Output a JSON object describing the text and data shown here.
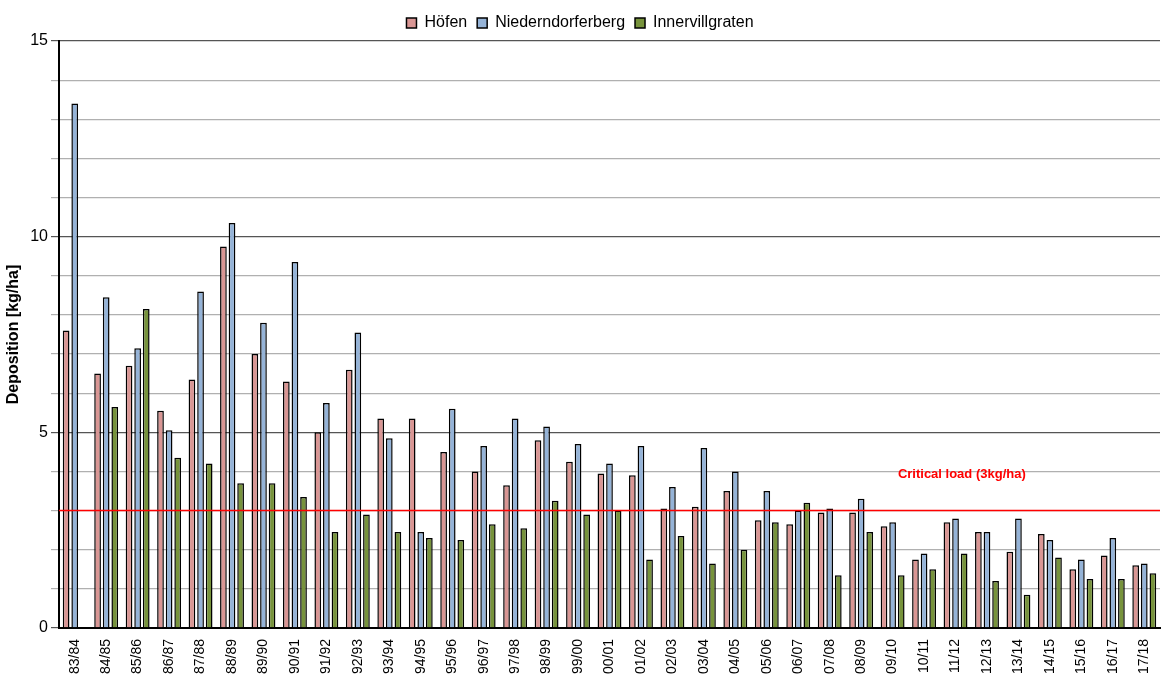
{
  "chart_data": {
    "type": "bar",
    "ylabel": "Deposition [kg/ha]",
    "categories": [
      "83/84",
      "84/85",
      "85/86",
      "86/87",
      "87/88",
      "88/89",
      "89/90",
      "90/91",
      "91/92",
      "92/93",
      "93/94",
      "94/95",
      "95/96",
      "96/97",
      "97/98",
      "98/99",
      "99/00",
      "00/01",
      "01/02",
      "02/03",
      "03/04",
      "04/05",
      "05/06",
      "06/07",
      "07/08",
      "08/09",
      "09/10",
      "10/11",
      "11/12",
      "12/13",
      "13/14",
      "14/15",
      "15/16",
      "16/17",
      "17/18"
    ],
    "series": [
      {
        "name": "Höfen",
        "color": "#d99694",
        "values": [
          7.6,
          6.5,
          6.7,
          5.55,
          6.35,
          9.75,
          7.0,
          6.3,
          5.0,
          6.6,
          5.35,
          5.35,
          4.5,
          4.0,
          3.65,
          4.8,
          4.25,
          3.95,
          3.9,
          3.05,
          3.1,
          3.5,
          2.75,
          2.65,
          2.95,
          2.95,
          2.6,
          1.75,
          2.7,
          2.45,
          1.95,
          2.4,
          1.5,
          1.85,
          1.6
        ]
      },
      {
        "name": "Niederndorferberg",
        "color": "#95b3d7",
        "values": [
          13.4,
          8.45,
          7.15,
          5.05,
          8.6,
          10.35,
          7.8,
          9.35,
          5.75,
          7.55,
          4.85,
          2.45,
          5.6,
          4.65,
          5.35,
          5.15,
          4.7,
          4.2,
          4.65,
          3.6,
          4.6,
          4.0,
          3.5,
          3.0,
          3.05,
          3.3,
          2.7,
          1.9,
          2.8,
          2.45,
          2.8,
          2.25,
          1.75,
          2.3,
          1.65
        ]
      },
      {
        "name": "Innervillgraten",
        "color": "#77933c",
        "values": [
          null,
          5.65,
          8.15,
          4.35,
          4.2,
          3.7,
          3.7,
          3.35,
          2.45,
          2.9,
          2.45,
          2.3,
          2.25,
          2.65,
          2.55,
          3.25,
          2.9,
          3.0,
          1.75,
          2.35,
          1.65,
          2.0,
          2.7,
          3.2,
          1.35,
          2.45,
          1.35,
          1.5,
          1.9,
          1.2,
          0.85,
          1.8,
          1.25,
          1.25,
          1.4
        ]
      }
    ],
    "ylim": [
      0,
      15
    ],
    "yticks": [
      0,
      {
        "value": 1,
        "label": null
      },
      {
        "value": 2,
        "label": null
      },
      {
        "value": 3,
        "label": null
      },
      {
        "value": 4,
        "label": null
      },
      5,
      {
        "value": 6,
        "label": null
      },
      {
        "value": 7,
        "label": null
      },
      {
        "value": 8,
        "label": null
      },
      {
        "value": 9,
        "label": null
      },
      10,
      {
        "value": 11,
        "label": null
      },
      {
        "value": 12,
        "label": null
      },
      {
        "value": 13,
        "label": null
      },
      {
        "value": 14,
        "label": null
      },
      15
    ],
    "grid": "y",
    "legend": "top",
    "ref_lines": [
      {
        "axis": "y",
        "value": 3,
        "label": "Critical load (3kg/ha)",
        "color": "#ff0000"
      }
    ]
  }
}
